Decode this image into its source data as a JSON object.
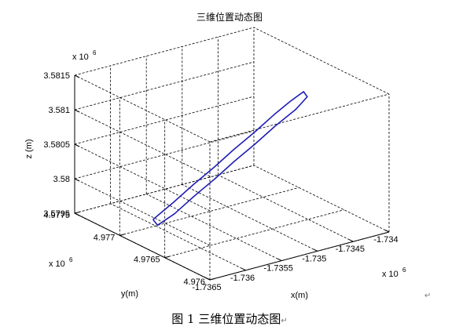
{
  "chart_data": {
    "type": "line",
    "title": "三维位置动态图",
    "xlabel": "x(m)",
    "ylabel": "y(m)",
    "zlabel": "z (m)",
    "x_multiplier": "x 10",
    "x_exponent": "6",
    "y_multiplier": "x 10",
    "y_exponent": "6",
    "z_multiplier": "x 10",
    "z_exponent": "6",
    "xlim": [
      -1.7365,
      -1.734
    ],
    "ylim": [
      4.976,
      4.9775
    ],
    "zlim": [
      3.5795,
      3.5815
    ],
    "x_ticks": [
      -1.7365,
      -1.736,
      -1.7355,
      -1.735,
      -1.7345,
      -1.734
    ],
    "x_tick_labels": [
      "-1.7365",
      "-1.736",
      "-1.7355",
      "-1.735",
      "-1.7345",
      "-1.734"
    ],
    "y_ticks": [
      4.976,
      4.9765,
      4.977,
      4.9775
    ],
    "y_tick_labels": [
      "4.976",
      "4.9765",
      "4.977",
      "4.9775"
    ],
    "z_ticks": [
      3.5795,
      3.58,
      3.5805,
      3.581,
      3.5815
    ],
    "z_tick_labels": [
      "3.5795",
      "3.58",
      "3.5805",
      "3.581",
      "3.5815"
    ],
    "grid": true,
    "series": [
      {
        "color": "#1f1fb4",
        "x": [
          -1.73635,
          -1.7361,
          -1.73585,
          -1.7356,
          -1.73535,
          -1.7351,
          -1.73485,
          -1.73465,
          -1.7345,
          -1.7345,
          -1.73465,
          -1.7349,
          -1.73515,
          -1.7354,
          -1.73565,
          -1.7359,
          -1.73615,
          -1.73635,
          -1.73635
        ],
        "y": [
          4.97675,
          4.97672,
          4.9767,
          4.97667,
          4.97665,
          4.97662,
          4.9766,
          4.97658,
          4.97655,
          4.97651,
          4.97652,
          4.97655,
          4.97657,
          4.9766,
          4.97662,
          4.97665,
          4.97667,
          4.9767,
          4.97675
        ],
        "z": [
          3.57985,
          3.58005,
          3.58025,
          3.58045,
          3.58065,
          3.58085,
          3.58105,
          3.5812,
          3.58132,
          3.58127,
          3.58112,
          3.58093,
          3.58073,
          3.58053,
          3.58033,
          3.58013,
          3.57993,
          3.5798,
          3.57985
        ]
      }
    ]
  },
  "caption": "图 1  三维位置动态图",
  "para_mark": "↵"
}
